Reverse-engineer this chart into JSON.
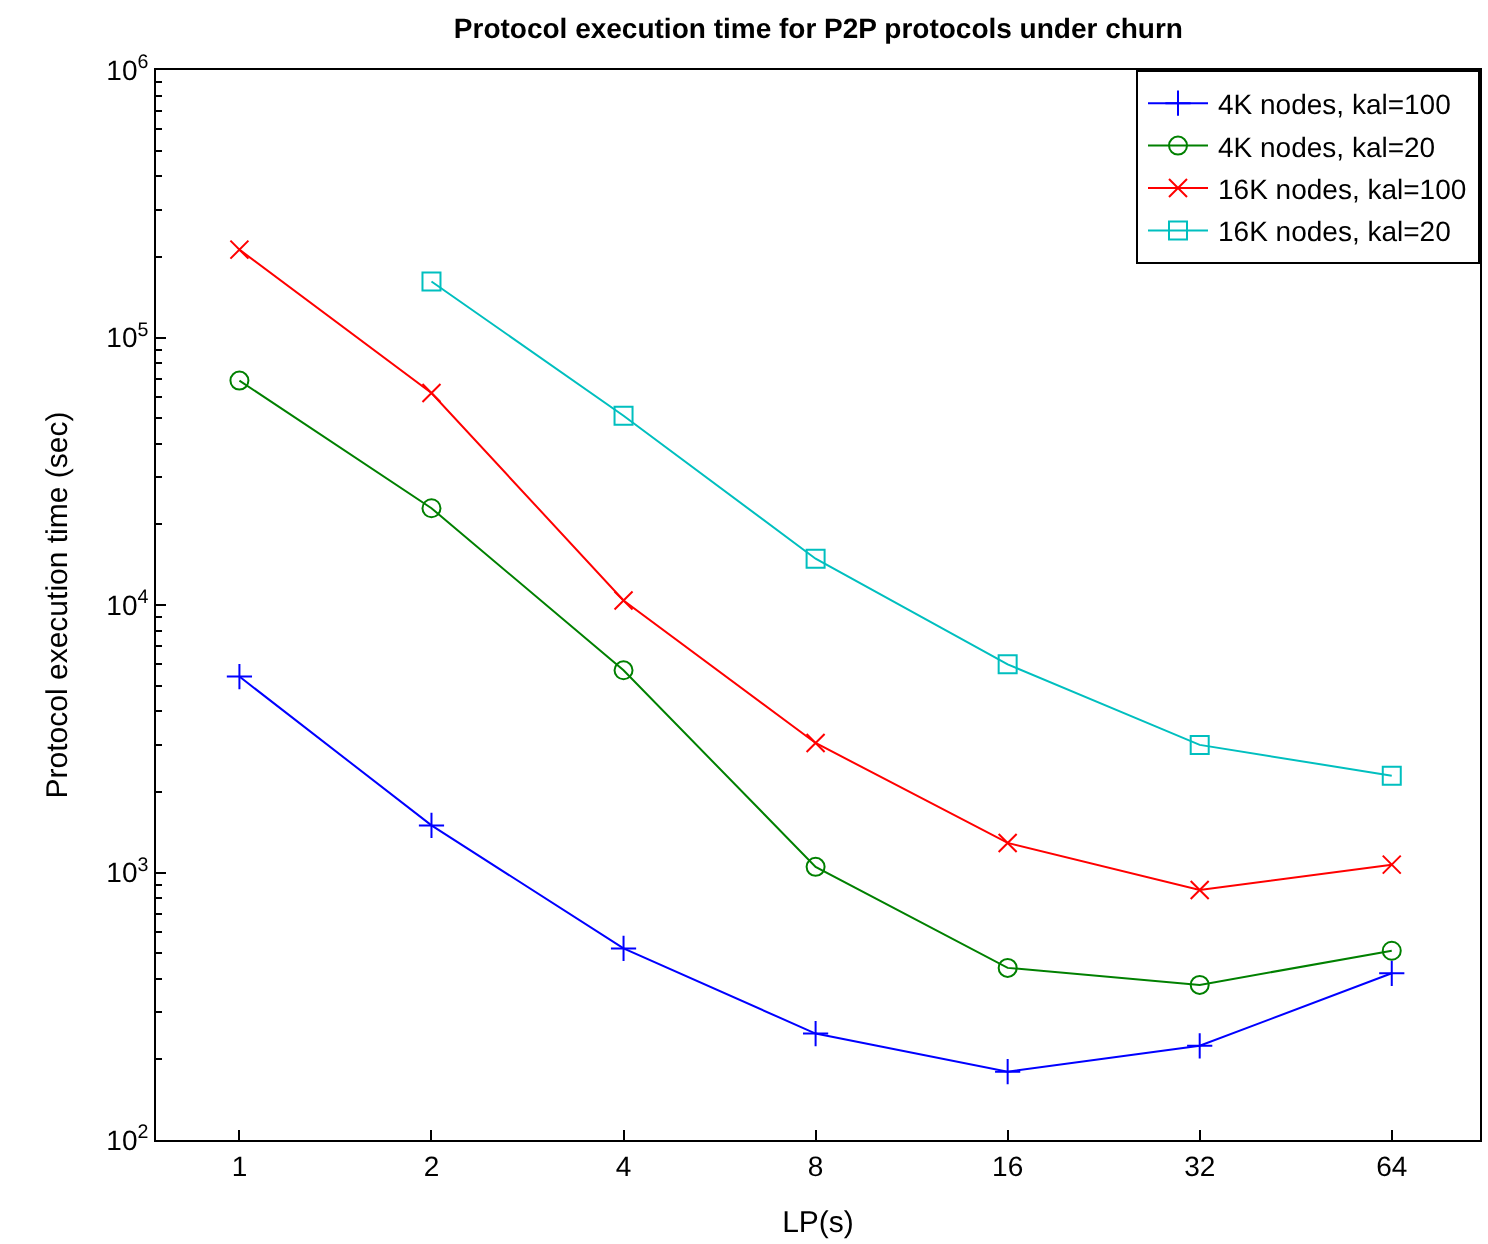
{
  "chart_data": {
    "type": "line",
    "title": "Protocol execution time for P2P protocols under churn",
    "xlabel": "LP(s)",
    "ylabel": "Protocol execution time (sec)",
    "x": [
      1,
      2,
      4,
      8,
      16,
      32,
      64
    ],
    "log": "xy",
    "xlim": [
      0.74,
      88
    ],
    "xticks": [
      1,
      2,
      4,
      8,
      16,
      32,
      64
    ],
    "ylim": [
      100,
      1000000
    ],
    "yticks": [
      {
        "value": 100,
        "label": "10$^{2}$"
      },
      {
        "value": 1000,
        "label": "10$^{3}$"
      },
      {
        "value": 10000,
        "label": "10$^{4}$"
      },
      {
        "value": 100000,
        "label": "10$^{5}$"
      },
      {
        "value": 1000000,
        "label": "10$^{6}$"
      }
    ],
    "legend": "top right",
    "line_style": "solid",
    "series": [
      {
        "name": "4K nodes, kal=100",
        "color": "#0000ff",
        "marker": "plus",
        "values": [
          5400,
          1500,
          520,
          250,
          180,
          225,
          420
        ]
      },
      {
        "name": "4K nodes, kal=20",
        "color": "#008000",
        "marker": "circle",
        "values": [
          69000,
          23000,
          5700,
          1050,
          440,
          380,
          510
        ]
      },
      {
        "name": "16K nodes, kal=100",
        "color": "#ff0000",
        "marker": "cross",
        "values": [
          213000,
          62000,
          10400,
          3050,
          1290,
          860,
          1070
        ]
      },
      {
        "name": "16K nodes, kal=20",
        "color": "#00bfbf",
        "marker": "square",
        "values": [
          null,
          162000,
          51000,
          14900,
          6000,
          3000,
          2300
        ]
      }
    ]
  }
}
